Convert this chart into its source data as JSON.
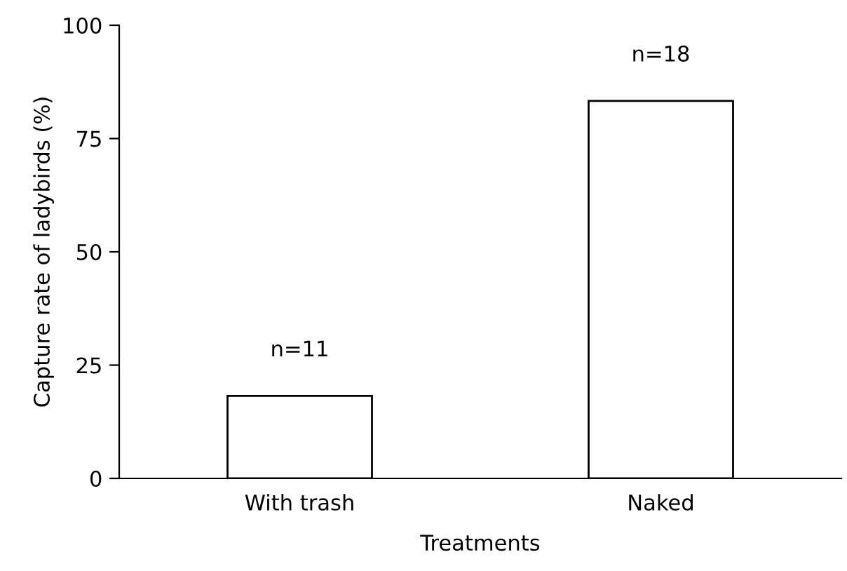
{
  "chart_data": {
    "type": "bar",
    "xlabel": "Treatments",
    "ylabel": "Capture rate of ladybirds (%)",
    "categories": [
      "With trash",
      "Naked"
    ],
    "series": [
      {
        "color": "#ffffff",
        "values": [
          18.2,
          83.3
        ]
      }
    ],
    "ylim": [
      0,
      100
    ],
    "yticks": [
      0,
      25,
      50,
      75,
      100
    ],
    "grid": false,
    "legend": false,
    "annotations": [
      {
        "text": "n=11",
        "x": "With trash",
        "y": 18.2
      },
      {
        "text": "n=18",
        "x": "Naked",
        "y": 83.3
      }
    ]
  }
}
